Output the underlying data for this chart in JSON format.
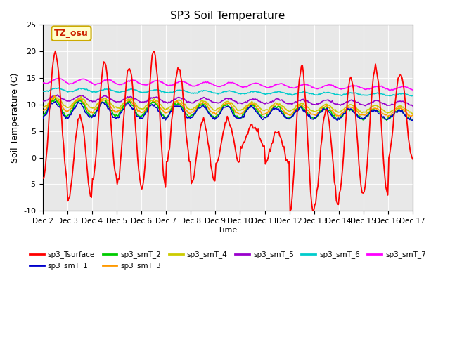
{
  "title": "SP3 Soil Temperature",
  "xlabel": "Time",
  "ylabel": "Soil Temperature (C)",
  "ylim": [
    -10,
    25
  ],
  "yticks": [
    -10,
    -5,
    0,
    5,
    10,
    15,
    20,
    25
  ],
  "xtick_labels": [
    "Dec 2",
    "Dec 3",
    "Dec 4",
    "Dec 5",
    "Dec 6",
    "Dec 7",
    "Dec 8",
    "Dec 9",
    "Dec 10",
    "Dec 11",
    "Dec 12",
    "Dec 13",
    "Dec 14",
    "Dec 15",
    "Dec 16",
    "Dec 17"
  ],
  "bg_color": "#e8e8e8",
  "annotation_text": "TZ_osu",
  "annotation_bg": "#ffffcc",
  "annotation_border": "#ccaa00",
  "legend_entries": [
    {
      "label": "sp3_Tsurface",
      "color": "#ff0000"
    },
    {
      "label": "sp3_smT_1",
      "color": "#0000cc"
    },
    {
      "label": "sp3_smT_2",
      "color": "#00cc00"
    },
    {
      "label": "sp3_smT_3",
      "color": "#ff9900"
    },
    {
      "label": "sp3_smT_4",
      "color": "#cccc00"
    },
    {
      "label": "sp3_smT_5",
      "color": "#9900cc"
    },
    {
      "label": "sp3_smT_6",
      "color": "#00cccc"
    },
    {
      "label": "sp3_smT_7",
      "color": "#ff00ff"
    }
  ]
}
